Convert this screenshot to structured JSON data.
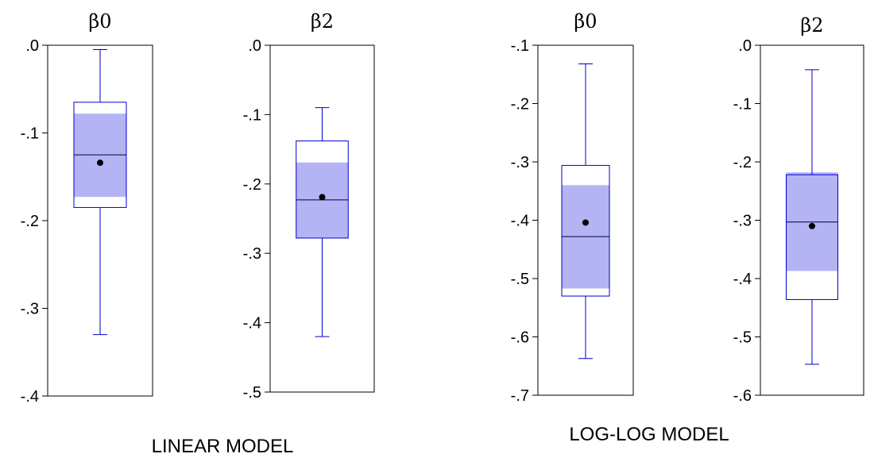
{
  "chart_data": [
    {
      "type": "boxplot",
      "group": "LINEAR MODEL",
      "title": "β0",
      "ylim": [
        -0.4,
        0.0
      ],
      "ticks": [
        ".0",
        "-.1",
        "-.2",
        "-.3",
        "-.4"
      ],
      "tick_values": [
        0.0,
        -0.1,
        -0.2,
        -0.3,
        -0.4
      ],
      "whisker_max": -0.005,
      "q3": -0.065,
      "median": -0.125,
      "q1": -0.185,
      "whisker_min": -0.33,
      "mean": -0.134,
      "ci_band": [
        -0.078,
        -0.173
      ]
    },
    {
      "type": "boxplot",
      "group": "LINEAR MODEL",
      "title": "β2",
      "ylim": [
        -0.5,
        0.0
      ],
      "ticks": [
        ".0",
        "-.1",
        "-.2",
        "-.3",
        "-.4",
        "-.5"
      ],
      "tick_values": [
        0.0,
        -0.1,
        -0.2,
        -0.3,
        -0.4,
        -0.5
      ],
      "whisker_max": -0.09,
      "q3": -0.138,
      "median": -0.223,
      "q1": -0.278,
      "whisker_min": -0.42,
      "mean": -0.219,
      "ci_band": [
        -0.169,
        -0.278
      ]
    },
    {
      "type": "boxplot",
      "group": "LOG-LOG MODEL",
      "title": "β0",
      "ylim": [
        -0.7,
        -0.1
      ],
      "ticks": [
        "-.1",
        "-.2",
        "-.3",
        "-.4",
        "-.5",
        "-.6",
        "-.7"
      ],
      "tick_values": [
        -0.1,
        -0.2,
        -0.3,
        -0.4,
        -0.5,
        -0.6,
        -0.7
      ],
      "whisker_max": -0.132,
      "q3": -0.306,
      "median": -0.428,
      "q1": -0.53,
      "whisker_min": -0.637,
      "mean": -0.404,
      "ci_band": [
        -0.34,
        -0.517
      ]
    },
    {
      "type": "boxplot",
      "group": "LOG-LOG MODEL",
      "title": "β2",
      "ylim": [
        -0.6,
        0.0
      ],
      "ticks": [
        ".0",
        "-.1",
        "-.2",
        "-.3",
        "-.4",
        "-.5",
        "-.6"
      ],
      "tick_values": [
        0.0,
        -0.1,
        -0.2,
        -0.3,
        -0.4,
        -0.5,
        -0.6
      ],
      "whisker_max": -0.042,
      "q3": -0.222,
      "median": -0.303,
      "q1": -0.436,
      "whisker_min": -0.547,
      "mean": -0.31,
      "ci_band": [
        -0.218,
        -0.387
      ]
    }
  ],
  "labels": {
    "linear": "LINEAR MODEL",
    "loglog": "LOG-LOG MODEL"
  },
  "colors": {
    "box": "#0000cc",
    "band": "#b4b4f5",
    "frame": "#000000",
    "mean": "#000000"
  }
}
